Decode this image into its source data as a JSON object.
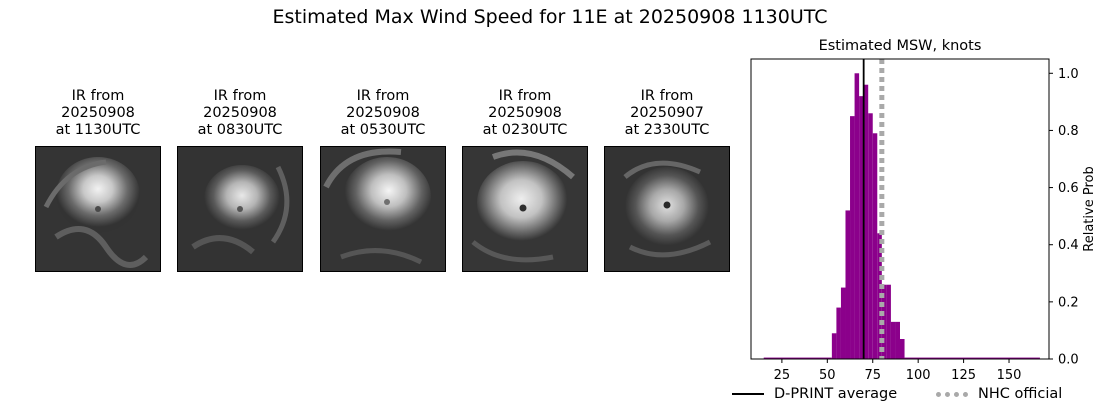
{
  "figure": {
    "title": "Estimated Max Wind Speed for 11E at 20250908 1130UTC"
  },
  "panels": [
    {
      "label_line1": "IR from",
      "label_line2": "20250908",
      "label_line3": "at 1130UTC"
    },
    {
      "label_line1": "IR from",
      "label_line2": "20250908",
      "label_line3": "at 0830UTC"
    },
    {
      "label_line1": "IR from",
      "label_line2": "20250908",
      "label_line3": "at 0530UTC"
    },
    {
      "label_line1": "IR from",
      "label_line2": "20250908",
      "label_line3": "at 0230UTC"
    },
    {
      "label_line1": "IR from",
      "label_line2": "20250907",
      "label_line3": "at 2330UTC"
    }
  ],
  "chart_data": {
    "type": "bar",
    "title": "Estimated MSW, knots",
    "xlabel": "",
    "ylabel": "Relative Prob",
    "xlim": [
      8,
      172
    ],
    "ylim": [
      0,
      1.05
    ],
    "xticks": [
      25,
      50,
      75,
      100,
      125,
      150
    ],
    "yticks": [
      0.0,
      0.2,
      0.4,
      0.6,
      0.8,
      1.0
    ],
    "ytick_labels": [
      "0.0",
      "0.2",
      "0.4",
      "0.6",
      "0.8",
      "1.0"
    ],
    "y_axis_side": "right",
    "bar_color": "#8b008b",
    "bin_width": 2.5,
    "bins": [
      {
        "x0": 15,
        "x1": 52.5,
        "value": 0.005
      },
      {
        "x0": 52.5,
        "x1": 55,
        "value": 0.09
      },
      {
        "x0": 55,
        "x1": 57.5,
        "value": 0.18
      },
      {
        "x0": 57.5,
        "x1": 60,
        "value": 0.25
      },
      {
        "x0": 60,
        "x1": 62.5,
        "value": 0.52
      },
      {
        "x0": 62.5,
        "x1": 65,
        "value": 0.85
      },
      {
        "x0": 65,
        "x1": 67.5,
        "value": 1.0
      },
      {
        "x0": 67.5,
        "x1": 70,
        "value": 0.92
      },
      {
        "x0": 70,
        "x1": 72.5,
        "value": 0.96
      },
      {
        "x0": 72.5,
        "x1": 75,
        "value": 0.86
      },
      {
        "x0": 75,
        "x1": 77.5,
        "value": 0.79
      },
      {
        "x0": 77.5,
        "x1": 80,
        "value": 0.44
      },
      {
        "x0": 80,
        "x1": 82.5,
        "value": 0.26
      },
      {
        "x0": 82.5,
        "x1": 85,
        "value": 0.26
      },
      {
        "x0": 85,
        "x1": 87.5,
        "value": 0.13
      },
      {
        "x0": 87.5,
        "x1": 90,
        "value": 0.13
      },
      {
        "x0": 90,
        "x1": 92.5,
        "value": 0.07
      },
      {
        "x0": 92.5,
        "x1": 167,
        "value": 0.005
      }
    ],
    "reference_lines": [
      {
        "name": "D-PRINT average",
        "x": 70,
        "color": "#000000",
        "style": "solid"
      },
      {
        "name": "NHC official",
        "x": 80,
        "color": "#a9a9a9",
        "style": "dotted"
      }
    ],
    "legend_placement": "bottom"
  }
}
